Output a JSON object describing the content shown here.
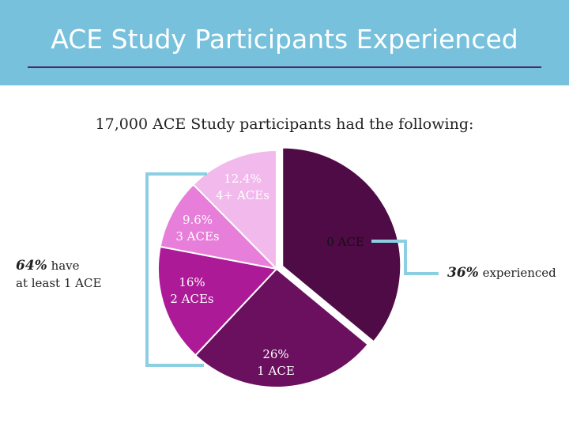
{
  "title": "ACE Study Participants Experienced",
  "subtitle": "17,000 ACE Study participants had the following:",
  "left_callout": {
    "percent": "64%",
    "text1": " have",
    "text2": "at least 1 ACE"
  },
  "right_callout": {
    "percent": "36%",
    "text": " experienced"
  },
  "chart_data": {
    "type": "pie",
    "slices": [
      {
        "label": "0 ACE",
        "value": 36,
        "color": "#4f0b45"
      },
      {
        "label": "1 ACE",
        "value": 26,
        "pct_label": "26%",
        "color": "#6b0f5f"
      },
      {
        "label": "2 ACEs",
        "value": 16,
        "pct_label": "16%",
        "color": "#ad1a98"
      },
      {
        "label": "3 ACEs",
        "value": 9.6,
        "pct_label": "9.6%",
        "color": "#e77ed9"
      },
      {
        "label": "4+ ACEs",
        "value": 12.4,
        "pct_label": "12.4%",
        "color": "#f2b9ec"
      }
    ]
  }
}
